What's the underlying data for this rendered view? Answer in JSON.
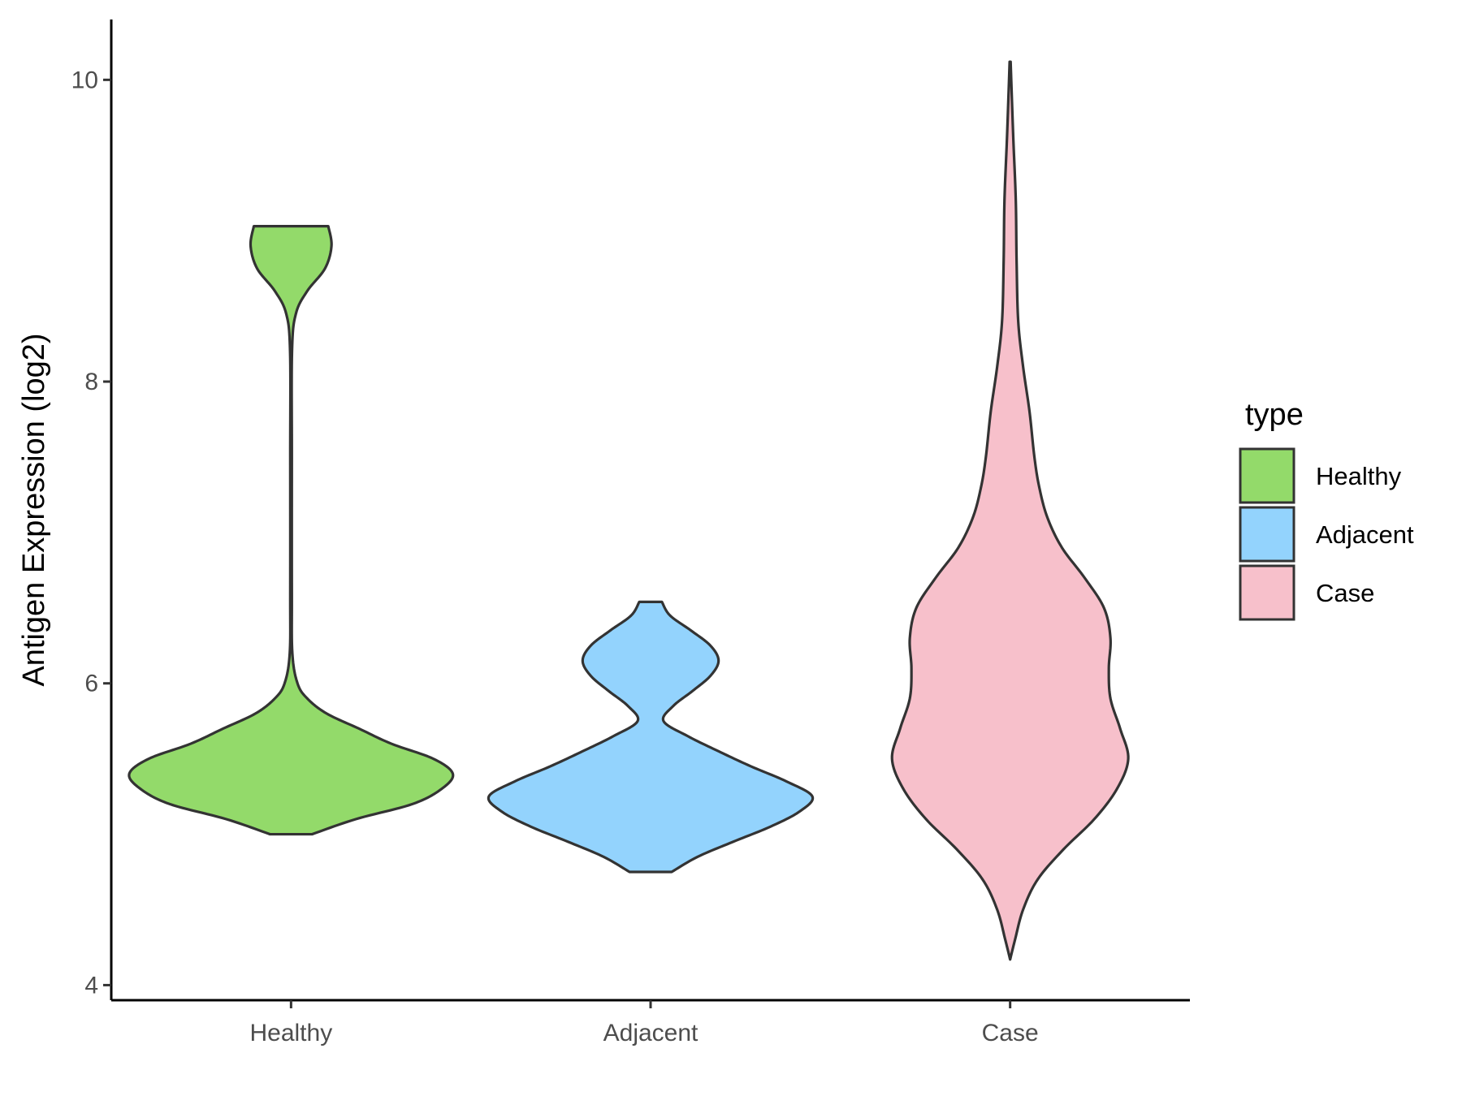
{
  "chart_data": {
    "type": "violin",
    "title": "",
    "xlabel": "",
    "ylabel": "Antigen Expression (log2)",
    "ylim": [
      3.9,
      10.4
    ],
    "yticks": [
      4,
      6,
      8,
      10
    ],
    "categories": [
      "Healthy",
      "Adjacent",
      "Case"
    ],
    "grid": false,
    "legend": {
      "title": "type",
      "placement": "right"
    },
    "series": [
      {
        "name": "Healthy",
        "color": "#93da6a",
        "min": 5.0,
        "max": 9.03,
        "density": [
          [
            5.0,
            0.13
          ],
          [
            5.1,
            0.4
          ],
          [
            5.2,
            0.75
          ],
          [
            5.3,
            0.93
          ],
          [
            5.4,
            1.0
          ],
          [
            5.5,
            0.88
          ],
          [
            5.6,
            0.62
          ],
          [
            5.7,
            0.42
          ],
          [
            5.8,
            0.22
          ],
          [
            5.9,
            0.1
          ],
          [
            6.0,
            0.04
          ],
          [
            6.2,
            0.008
          ],
          [
            6.6,
            0.005
          ],
          [
            7.5,
            0.005
          ],
          [
            8.2,
            0.006
          ],
          [
            8.45,
            0.03
          ],
          [
            8.6,
            0.1
          ],
          [
            8.75,
            0.21
          ],
          [
            8.9,
            0.25
          ],
          [
            9.03,
            0.23
          ]
        ]
      },
      {
        "name": "Adjacent",
        "color": "#93d3fd",
        "min": 4.75,
        "max": 6.54,
        "density": [
          [
            4.75,
            0.13
          ],
          [
            4.85,
            0.29
          ],
          [
            4.95,
            0.51
          ],
          [
            5.05,
            0.74
          ],
          [
            5.15,
            0.92
          ],
          [
            5.25,
            1.0
          ],
          [
            5.35,
            0.84
          ],
          [
            5.45,
            0.62
          ],
          [
            5.55,
            0.42
          ],
          [
            5.65,
            0.23
          ],
          [
            5.75,
            0.08
          ],
          [
            5.85,
            0.14
          ],
          [
            5.95,
            0.26
          ],
          [
            6.05,
            0.37
          ],
          [
            6.15,
            0.42
          ],
          [
            6.25,
            0.37
          ],
          [
            6.35,
            0.25
          ],
          [
            6.45,
            0.12
          ],
          [
            6.54,
            0.07
          ]
        ]
      },
      {
        "name": "Case",
        "color": "#f7c0cb",
        "min": 4.17,
        "max": 10.12,
        "density": [
          [
            4.17,
            0.0
          ],
          [
            4.3,
            0.03
          ],
          [
            4.5,
            0.08
          ],
          [
            4.7,
            0.17
          ],
          [
            4.9,
            0.33
          ],
          [
            5.1,
            0.52
          ],
          [
            5.3,
            0.66
          ],
          [
            5.5,
            0.73
          ],
          [
            5.7,
            0.68
          ],
          [
            5.9,
            0.62
          ],
          [
            6.1,
            0.61
          ],
          [
            6.3,
            0.62
          ],
          [
            6.5,
            0.58
          ],
          [
            6.7,
            0.46
          ],
          [
            6.9,
            0.32
          ],
          [
            7.1,
            0.23
          ],
          [
            7.3,
            0.18
          ],
          [
            7.5,
            0.15
          ],
          [
            7.8,
            0.12
          ],
          [
            8.1,
            0.08
          ],
          [
            8.4,
            0.05
          ],
          [
            8.8,
            0.04
          ],
          [
            9.2,
            0.035
          ],
          [
            9.6,
            0.02
          ],
          [
            9.9,
            0.01
          ],
          [
            10.12,
            0.003
          ]
        ]
      }
    ]
  }
}
